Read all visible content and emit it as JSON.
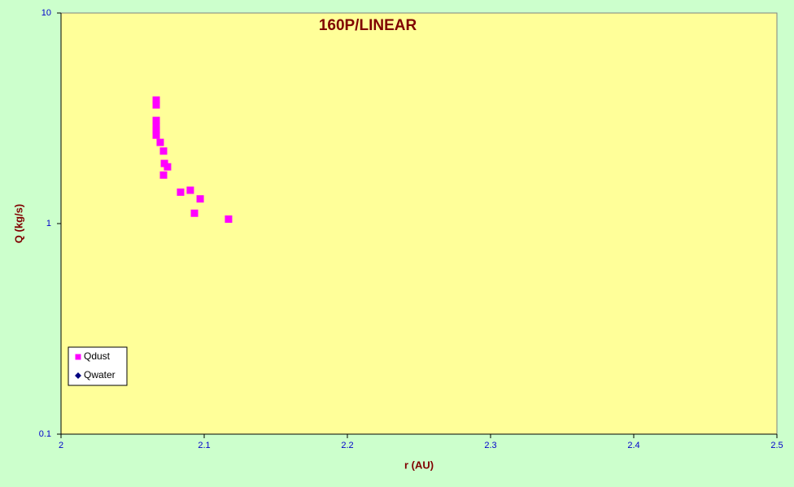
{
  "chart_data": {
    "type": "scatter",
    "title": "160P/LINEAR",
    "x_label": "r (AU)",
    "y_label": "Q (kg/s)",
    "xlim": [
      2,
      2.5
    ],
    "xticks": [
      2,
      2.1,
      2.2,
      2.3,
      2.4,
      2.5
    ],
    "ylim": [
      0.1,
      10
    ],
    "yticks": [
      0.1,
      1,
      10
    ],
    "y_scale": "log",
    "legend_position": "lower left",
    "series": [
      {
        "name": "Qdust",
        "color": "#ff00ff",
        "marker": "square",
        "x": [
          2.0665,
          2.0665,
          2.0665,
          2.0665,
          2.0665,
          2.0665,
          2.0693,
          2.0716,
          2.0722,
          2.0744,
          2.0716,
          2.0835,
          2.0903,
          2.0972,
          2.0932,
          2.117
        ],
        "y": [
          3.86,
          3.66,
          3.09,
          2.9,
          2.78,
          2.63,
          2.43,
          2.21,
          1.93,
          1.86,
          1.7,
          1.41,
          1.44,
          1.31,
          1.12,
          1.05
        ]
      },
      {
        "name": "Qwater",
        "color": "#000080",
        "marker": "diamond",
        "x": [],
        "y": []
      }
    ]
  }
}
